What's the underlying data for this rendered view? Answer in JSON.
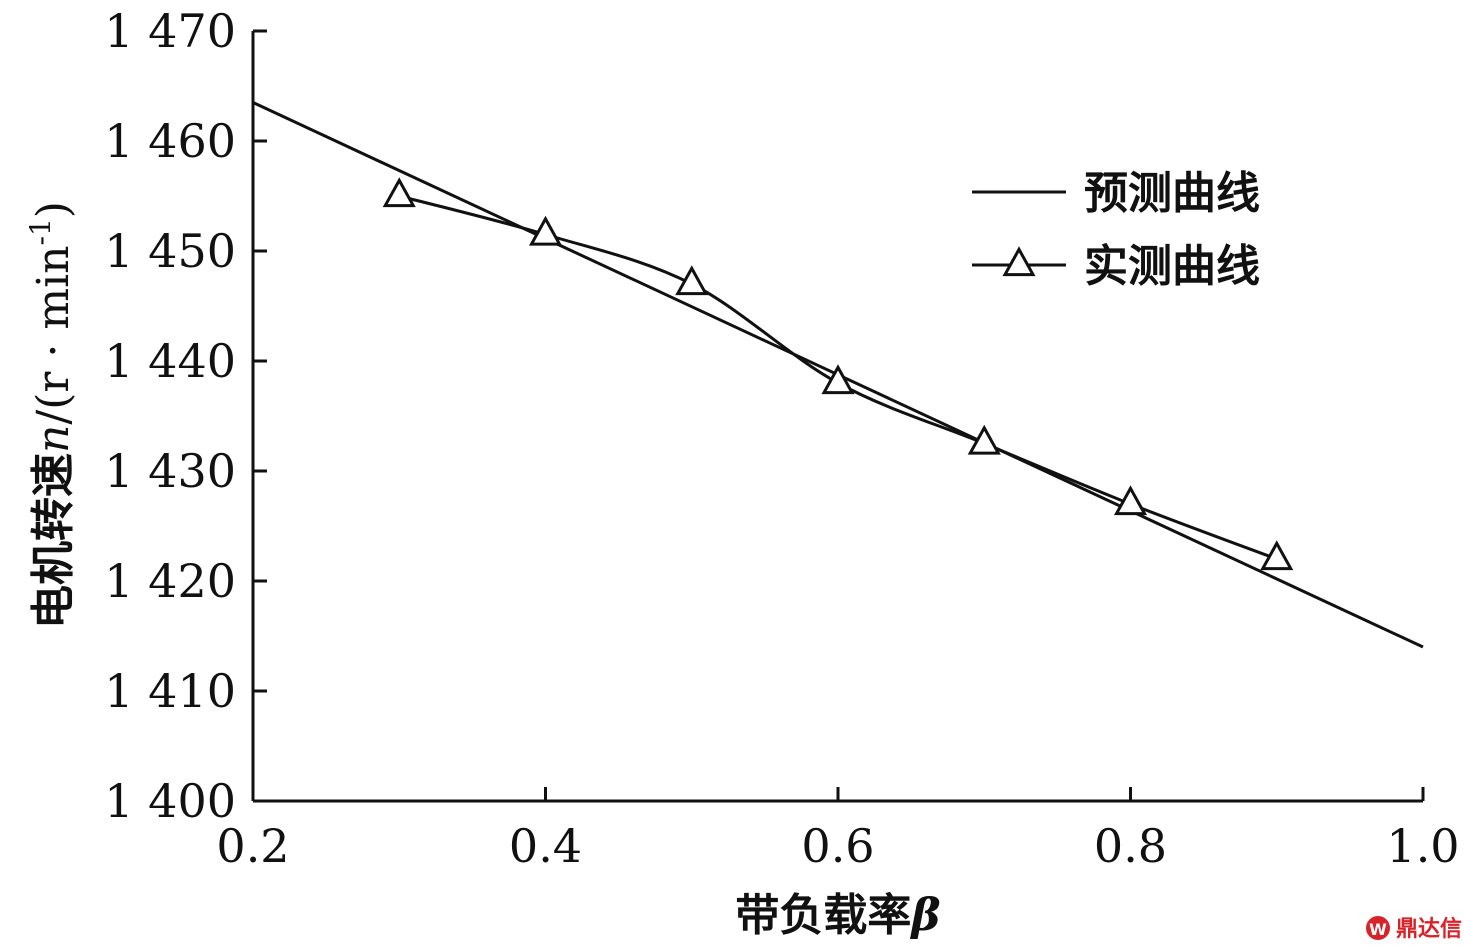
{
  "chart_data": {
    "type": "line",
    "title": "",
    "xlabel_text": "带负载率",
    "xlabel_symbol": "β",
    "ylabel_text": "电机转速",
    "ylabel_symbol": "n",
    "ylabel_unit": "/(r · min",
    "ylabel_unit_sup": "-1",
    "ylabel_unit_close": ")",
    "xlim": [
      0.2,
      1.0
    ],
    "ylim": [
      1400,
      1470
    ],
    "x_ticks": [
      "0.2",
      "0.4",
      "0.6",
      "0.8",
      "1.0"
    ],
    "y_ticks": [
      "1 400",
      "1 410",
      "1 420",
      "1 430",
      "1 440",
      "1 450",
      "1 460",
      "1 470"
    ],
    "legend_position": "top-right",
    "grid": false,
    "series": [
      {
        "name": "预测曲线",
        "marker": "none",
        "x": [
          0.2,
          1.0
        ],
        "y": [
          1463.5,
          1414
        ]
      },
      {
        "name": "实测曲线",
        "marker": "triangle",
        "x": [
          0.3,
          0.4,
          0.5,
          0.6,
          0.7,
          0.8,
          0.9
        ],
        "y": [
          1455,
          1451.5,
          1447,
          1438,
          1432.5,
          1427,
          1422
        ]
      }
    ]
  },
  "watermark": {
    "label": "鼎达信",
    "color": "#d8232a"
  }
}
